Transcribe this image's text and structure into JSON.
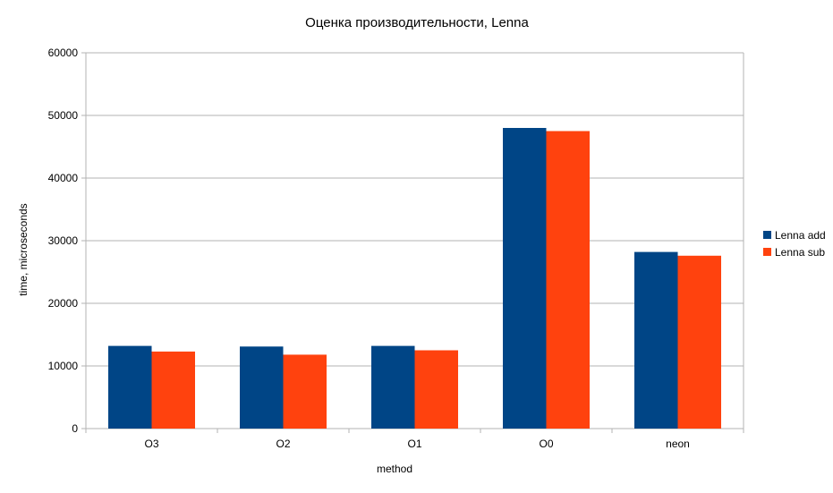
{
  "chart_data": {
    "type": "bar",
    "title": "Оценка производительности, Lenna",
    "xlabel": "method",
    "ylabel": "time, microseconds",
    "categories": [
      "O3",
      "O2",
      "O1",
      "O0",
      "neon"
    ],
    "series": [
      {
        "name": "Lenna add",
        "color": "#004586",
        "values": [
          13200,
          13100,
          13200,
          48000,
          28200
        ]
      },
      {
        "name": "Lenna sub",
        "color": "#ff420e",
        "values": [
          12300,
          11800,
          12500,
          47500,
          27600
        ]
      }
    ],
    "ylim": [
      0,
      60000
    ],
    "yticks": [
      "0",
      "10000",
      "20000",
      "30000",
      "40000",
      "50000",
      "60000"
    ],
    "grid": true,
    "legend_position": "right"
  }
}
